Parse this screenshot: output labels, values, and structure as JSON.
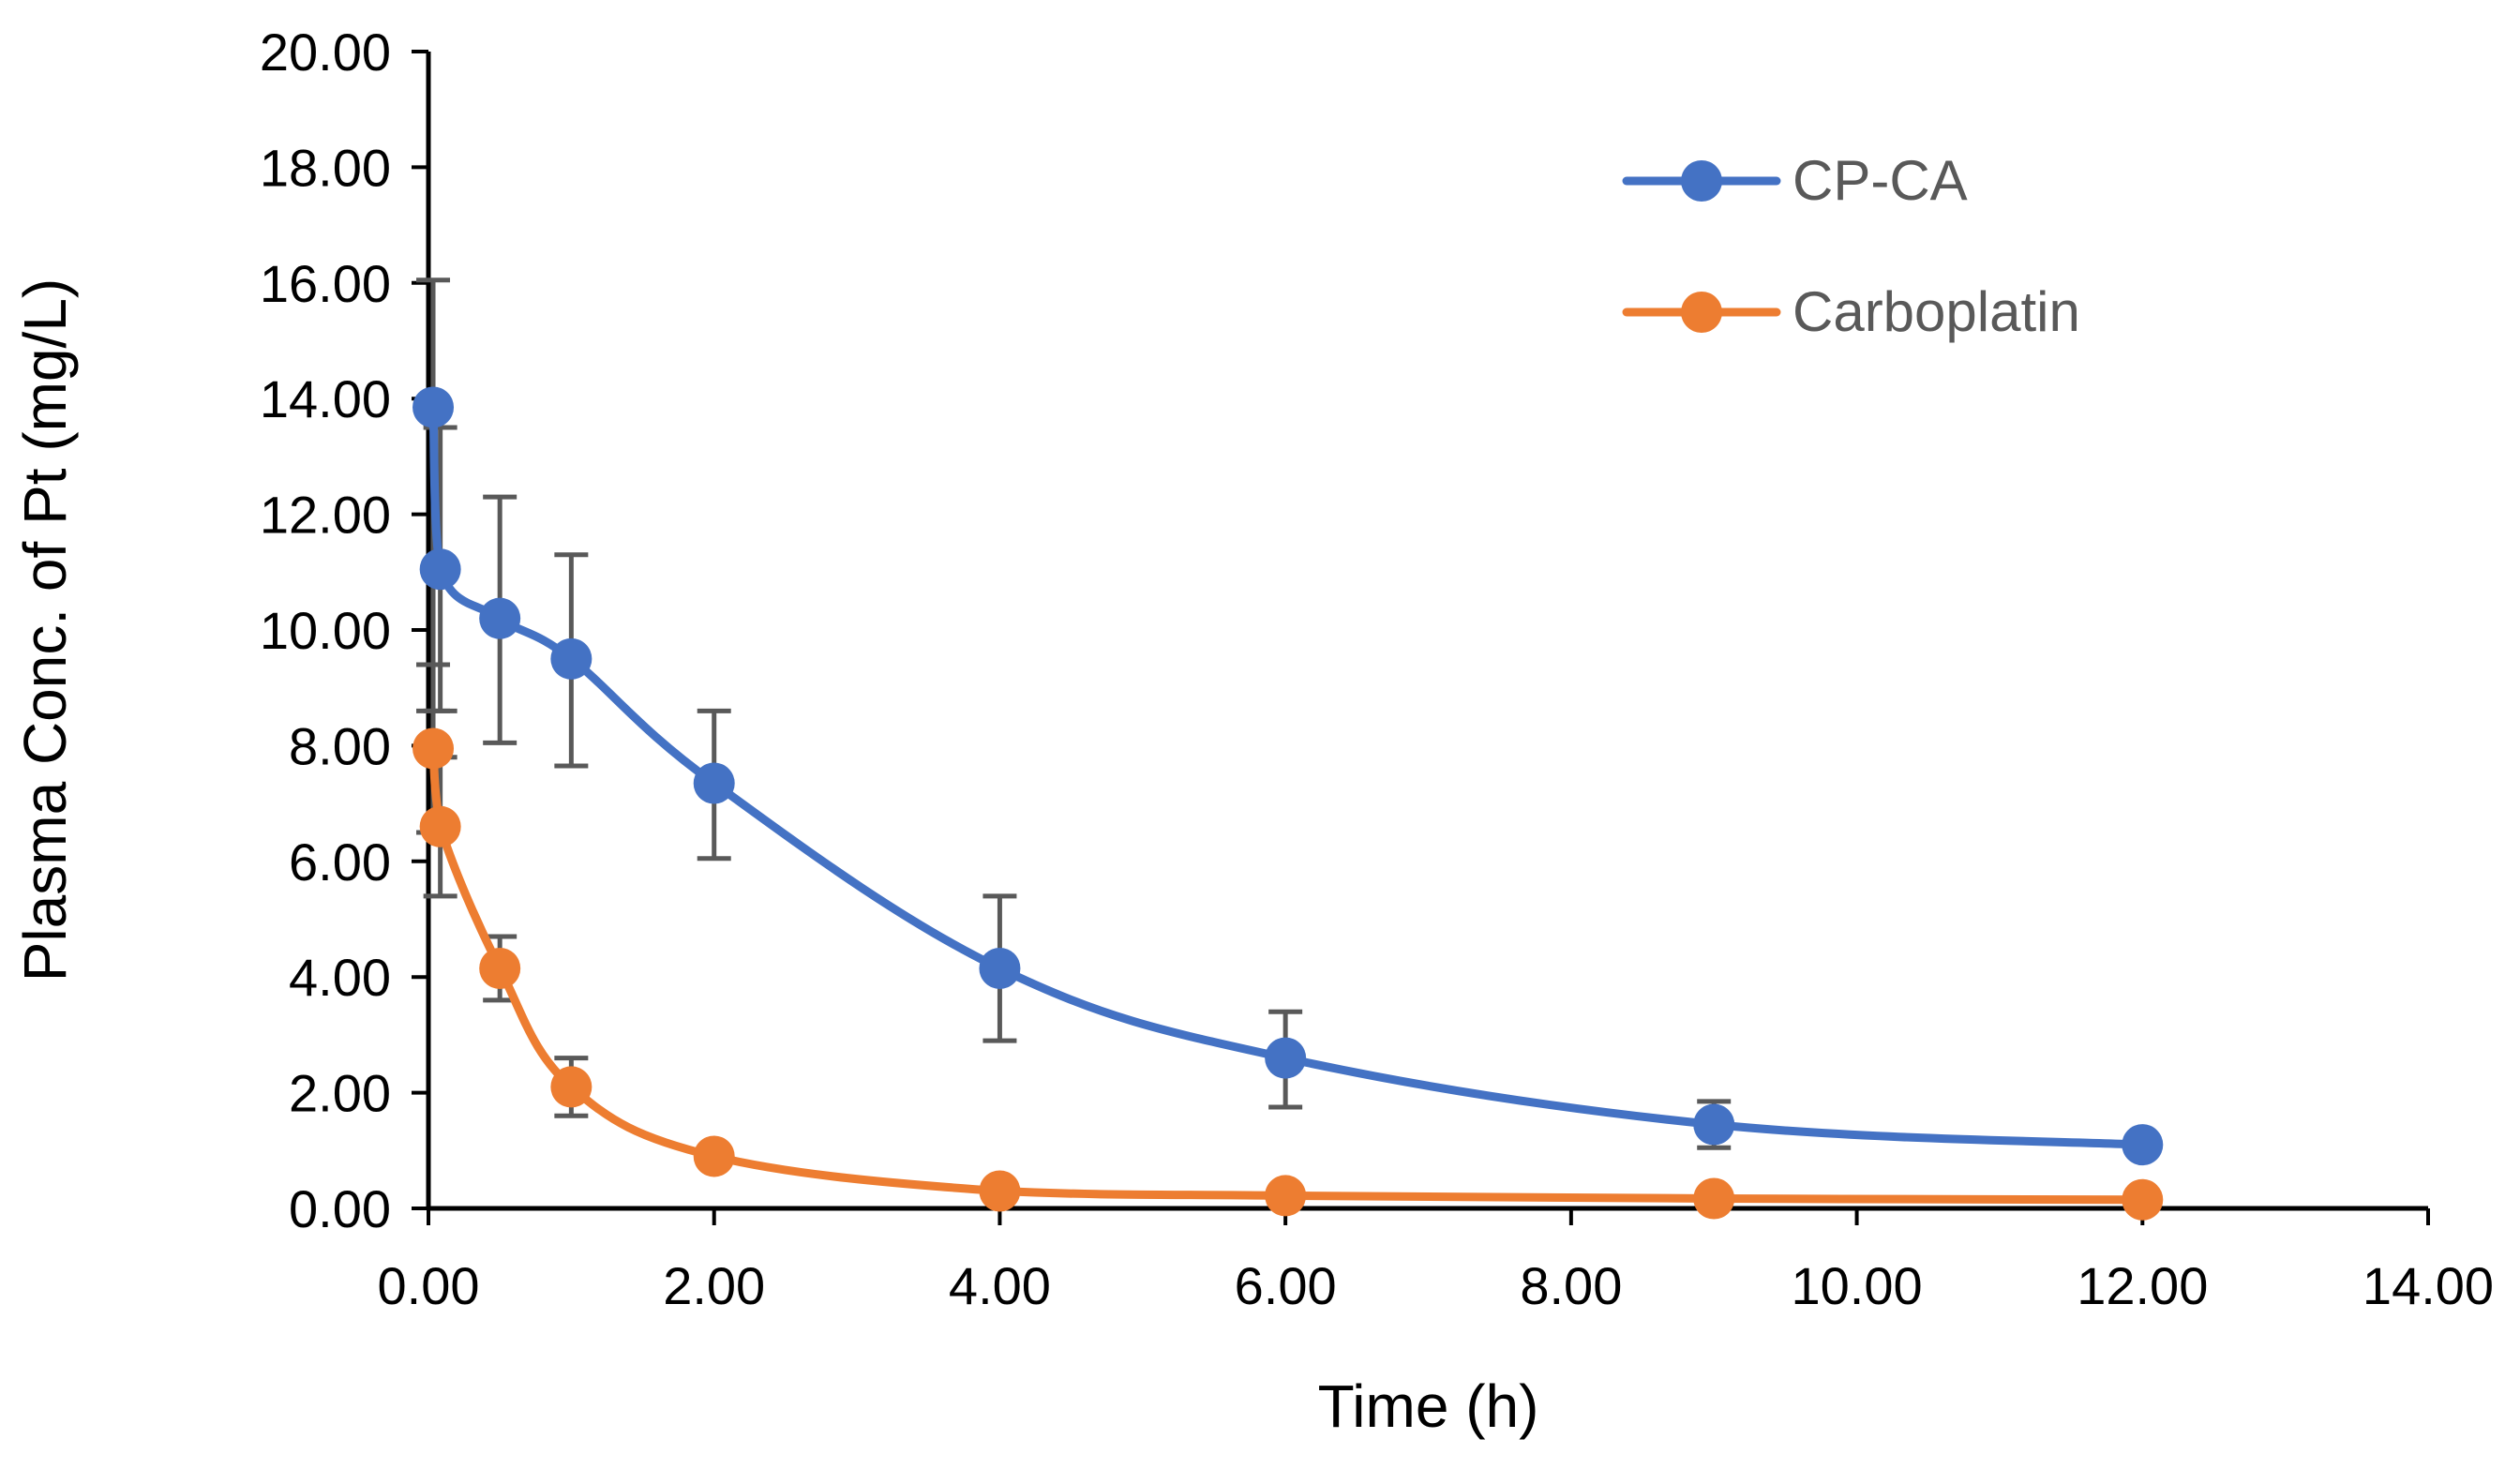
{
  "chart_data": {
    "type": "scatter",
    "title": "",
    "xlabel": "Time (h)",
    "ylabel": "Plasma Conc. of Pt (mg/L)",
    "xlim": [
      0,
      14
    ],
    "ylim": [
      0,
      20
    ],
    "x_ticks": [
      "0.00",
      "2.00",
      "4.00",
      "6.00",
      "8.00",
      "10.00",
      "12.00",
      "14.00"
    ],
    "y_ticks": [
      "0.00",
      "2.00",
      "4.00",
      "6.00",
      "8.00",
      "10.00",
      "12.00",
      "14.00",
      "16.00",
      "18.00",
      "20.00"
    ],
    "grid": false,
    "legend_position": "top-right",
    "series": [
      {
        "name": "CP-CA",
        "color": "#4472C4",
        "x": [
          0.033,
          0.083,
          0.5,
          1,
          2,
          4,
          6,
          9,
          12
        ],
        "y": [
          13.85,
          11.05,
          10.2,
          9.5,
          7.35,
          4.15,
          2.6,
          1.45,
          1.1
        ],
        "err_low": [
          8.6,
          8.6,
          8.05,
          7.65,
          6.05,
          2.9,
          1.75,
          1.05,
          1.1
        ],
        "err_high": [
          16.05,
          13.5,
          12.3,
          11.3,
          8.6,
          5.4,
          3.4,
          1.85,
          1.1
        ]
      },
      {
        "name": "Carboplatin",
        "color": "#ED7D31",
        "x": [
          0.033,
          0.083,
          0.5,
          1,
          2,
          4,
          6,
          9,
          12
        ],
        "y": [
          7.95,
          6.6,
          4.15,
          2.1,
          0.9,
          0.3,
          0.22,
          0.17,
          0.15
        ],
        "err_low": [
          6.5,
          5.4,
          3.6,
          1.6,
          0.75,
          0.3,
          0.22,
          0.17,
          0.15
        ],
        "err_high": [
          9.4,
          7.8,
          4.7,
          2.6,
          1.05,
          0.3,
          0.22,
          0.17,
          0.15
        ]
      }
    ]
  }
}
